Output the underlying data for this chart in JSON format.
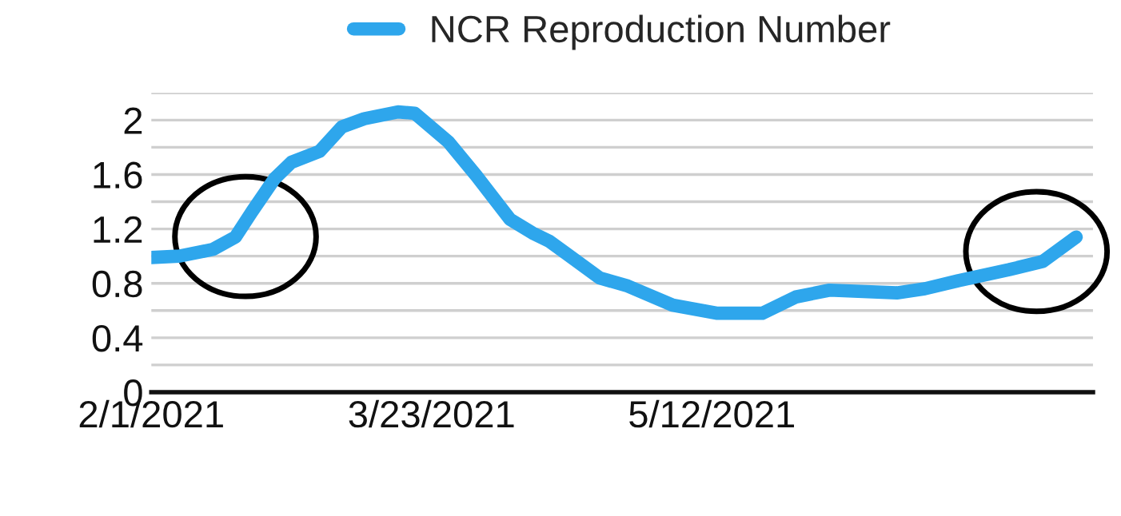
{
  "chart_data": {
    "type": "line",
    "x": [
      "2021-02-01",
      "2021-02-06",
      "2021-02-12",
      "2021-02-16",
      "2021-02-19",
      "2021-02-23",
      "2021-02-26",
      "2021-03-03",
      "2021-03-07",
      "2021-03-11",
      "2021-03-17",
      "2021-03-20",
      "2021-03-26",
      "2021-03-31",
      "2021-04-06",
      "2021-04-10",
      "2021-04-13",
      "2021-04-16",
      "2021-04-22",
      "2021-04-27",
      "2021-05-05",
      "2021-05-13",
      "2021-05-21",
      "2021-05-27",
      "2021-06-02",
      "2021-06-14",
      "2021-06-19",
      "2021-06-25",
      "2021-07-04",
      "2021-07-10",
      "2021-07-16"
    ],
    "series": [
      {
        "name": "NCR Reproduction Number",
        "color": "#2ea6ec",
        "values": [
          0.99,
          1.0,
          1.05,
          1.14,
          1.33,
          1.57,
          1.69,
          1.77,
          1.95,
          2.01,
          2.06,
          2.05,
          1.84,
          1.59,
          1.27,
          1.17,
          1.11,
          1.02,
          0.84,
          0.78,
          0.64,
          0.58,
          0.58,
          0.7,
          0.75,
          0.73,
          0.76,
          0.82,
          0.9,
          0.96,
          1.14
        ]
      }
    ],
    "xlim": [
      "2021-02-01",
      "2021-07-19"
    ],
    "xticks": [
      {
        "value": "2021-02-01",
        "label": "2/1/2021"
      },
      {
        "value": "2021-03-23",
        "label": "3/23/2021"
      },
      {
        "value": "2021-05-12",
        "label": "5/12/2021"
      }
    ],
    "ylim": [
      0,
      2.2
    ],
    "yticks": [
      0,
      {
        "value": 0.2,
        "label": null
      },
      0.4,
      {
        "value": 0.6,
        "label": null
      },
      0.8,
      {
        "value": 1.0,
        "label": null
      },
      1.2,
      {
        "value": 1.4,
        "label": null
      },
      1.6,
      {
        "value": 1.8,
        "label": null
      },
      2,
      {
        "value": 2.2,
        "label": null
      }
    ],
    "grid": "y",
    "legend": "top",
    "marker": "none",
    "line_style": "solid"
  }
}
